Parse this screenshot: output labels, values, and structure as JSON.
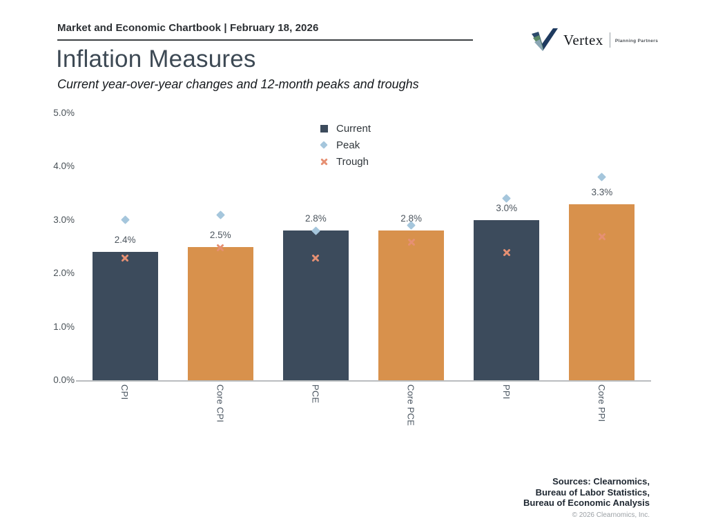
{
  "header": {
    "eyebrow": "Market and Economic Chartbook | February 18, 2026",
    "title": "Inflation Measures",
    "subtitle": "Current year-over-year changes and 12-month peaks and troughs"
  },
  "logo": {
    "name": "Vertex",
    "tagline": "Planning Partners"
  },
  "chart_data": {
    "type": "bar",
    "title": "Inflation Measures",
    "categories": [
      "CPI",
      "Core CPI",
      "PCE",
      "Core PCE",
      "PPI",
      "Core PPI"
    ],
    "series": [
      {
        "name": "Current",
        "type": "bar",
        "values": [
          2.4,
          2.5,
          2.8,
          2.8,
          3.0,
          3.3
        ]
      },
      {
        "name": "Peak",
        "type": "scatter",
        "marker": "diamond",
        "values": [
          3.0,
          3.1,
          2.8,
          2.9,
          3.4,
          3.8
        ]
      },
      {
        "name": "Trough",
        "type": "scatter",
        "marker": "x",
        "values": [
          2.3,
          2.5,
          2.3,
          2.6,
          2.4,
          2.7
        ]
      }
    ],
    "bar_labels": [
      "2.4%",
      "2.5%",
      "2.8%",
      "2.8%",
      "3.0%",
      "3.3%"
    ],
    "ylim": [
      0,
      5
    ],
    "yticks": [
      "0.0%",
      "1.0%",
      "2.0%",
      "3.0%",
      "4.0%",
      "5.0%"
    ],
    "grid": false,
    "legend_position": "top-center",
    "colors": {
      "bar_dark": "#3c4b5c",
      "bar_orange": "#d8914c",
      "peak": "#a5c6dc",
      "trough": "#e69073",
      "axis": "#b9bcbf"
    }
  },
  "footer": {
    "sources_lines": [
      "Sources: Clearnomics,",
      "Bureau of Labor Statistics,",
      "Bureau of Economic Analysis"
    ],
    "copyright": "© 2026 Clearnomics, Inc."
  }
}
